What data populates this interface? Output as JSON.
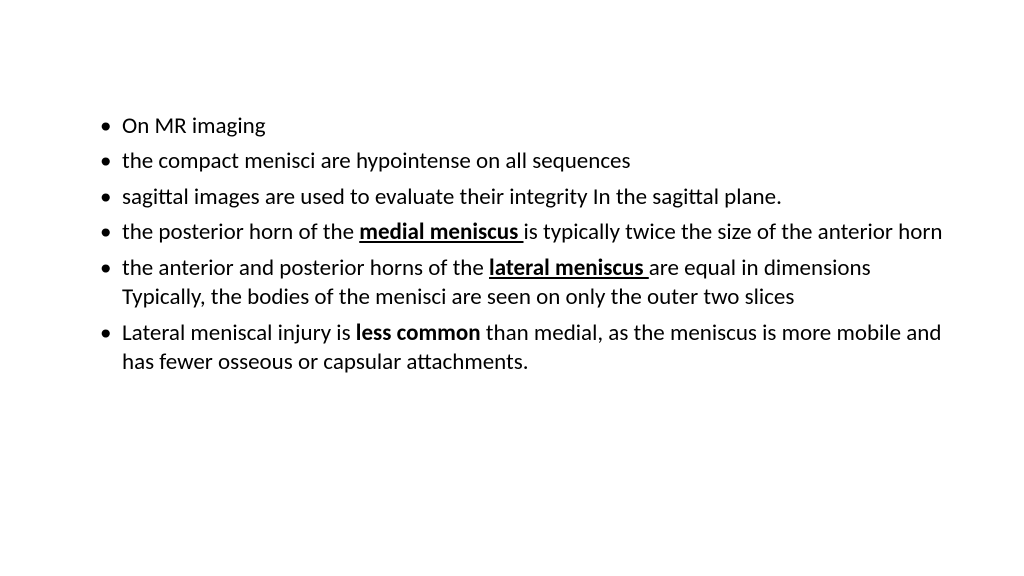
{
  "text_color": "#000000",
  "background_color": "#ffffff",
  "font_size_pt": 17,
  "bullets": [
    {
      "parts": [
        {
          "t": "On MR imaging"
        }
      ]
    },
    {
      "parts": [
        {
          "t": "the compact menisci are hypointense on all sequences"
        }
      ]
    },
    {
      "parts": [
        {
          "t": "sagittal images are used to evaluate their integrity In the sagittal plane."
        }
      ]
    },
    {
      "parts": [
        {
          "t": "the posterior horn of the "
        },
        {
          "t": "medial meniscus ",
          "bold": true,
          "underline": true
        },
        {
          "t": "is typically twice the size of the anterior horn"
        }
      ]
    },
    {
      "parts": [
        {
          "t": "the anterior and posterior horns of the "
        },
        {
          "t": "lateral meniscus ",
          "bold": true,
          "underline": true
        },
        {
          "t": "are equal in dimensions Typically, the bodies of the menisci are seen on only the outer two slices"
        }
      ]
    },
    {
      "parts": [
        {
          "t": "Lateral meniscal injury is "
        },
        {
          "t": "less common",
          "bold": true
        },
        {
          "t": " than medial, as the meniscus is more mobile and has fewer osseous or capsular attachments."
        }
      ]
    }
  ]
}
